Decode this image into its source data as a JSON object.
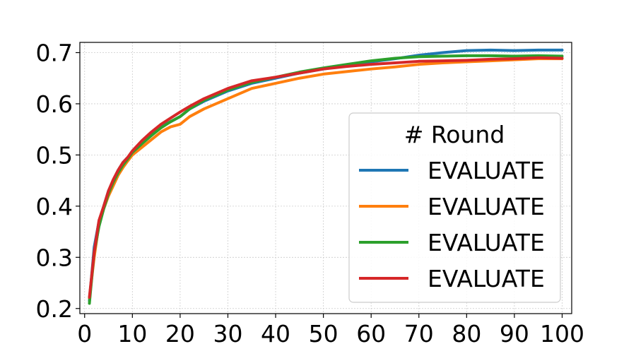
{
  "chart_data": {
    "type": "line",
    "title": "",
    "xlabel": "",
    "ylabel": "",
    "xlim": [
      -1,
      102
    ],
    "ylim": [
      0.19,
      0.72
    ],
    "xticks": [
      0,
      10,
      20,
      30,
      40,
      50,
      60,
      70,
      80,
      90,
      100
    ],
    "yticks": [
      0.2,
      0.3,
      0.4,
      0.5,
      0.6,
      0.7
    ],
    "grid": true,
    "legend": {
      "title": "# Round",
      "placement": "lower-right"
    },
    "x": [
      1,
      2,
      3,
      4,
      5,
      6,
      7,
      8,
      9,
      10,
      12,
      14,
      16,
      18,
      20,
      22,
      25,
      30,
      35,
      40,
      45,
      50,
      55,
      60,
      65,
      70,
      75,
      80,
      85,
      90,
      95,
      100
    ],
    "series": [
      {
        "name": "EVALUATE",
        "color": "#1f77b4",
        "values": [
          0.215,
          0.32,
          0.37,
          0.4,
          0.43,
          0.45,
          0.47,
          0.485,
          0.495,
          0.505,
          0.525,
          0.54,
          0.555,
          0.565,
          0.575,
          0.59,
          0.605,
          0.625,
          0.64,
          0.65,
          0.66,
          0.668,
          0.675,
          0.682,
          0.688,
          0.695,
          0.7,
          0.704,
          0.705,
          0.704,
          0.705,
          0.705
        ]
      },
      {
        "name": "EVALUATE",
        "color": "#ff7f0e",
        "values": [
          0.22,
          0.3,
          0.365,
          0.395,
          0.42,
          0.44,
          0.46,
          0.475,
          0.488,
          0.5,
          0.515,
          0.53,
          0.545,
          0.555,
          0.56,
          0.575,
          0.59,
          0.61,
          0.63,
          0.64,
          0.65,
          0.658,
          0.663,
          0.668,
          0.672,
          0.677,
          0.68,
          0.682,
          0.684,
          0.686,
          0.688,
          0.688
        ]
      },
      {
        "name": "EVALUATE",
        "color": "#2ca02c",
        "values": [
          0.21,
          0.31,
          0.36,
          0.395,
          0.425,
          0.447,
          0.465,
          0.48,
          0.492,
          0.505,
          0.522,
          0.538,
          0.553,
          0.565,
          0.575,
          0.59,
          0.607,
          0.627,
          0.642,
          0.652,
          0.662,
          0.67,
          0.677,
          0.684,
          0.689,
          0.692,
          0.693,
          0.694,
          0.694,
          0.693,
          0.694,
          0.693
        ]
      },
      {
        "name": "EVALUATE",
        "color": "#d62728",
        "values": [
          0.222,
          0.31,
          0.372,
          0.4,
          0.43,
          0.452,
          0.47,
          0.485,
          0.495,
          0.508,
          0.528,
          0.545,
          0.56,
          0.572,
          0.584,
          0.595,
          0.61,
          0.63,
          0.645,
          0.652,
          0.66,
          0.668,
          0.673,
          0.677,
          0.68,
          0.683,
          0.684,
          0.685,
          0.687,
          0.688,
          0.69,
          0.689
        ]
      }
    ]
  }
}
